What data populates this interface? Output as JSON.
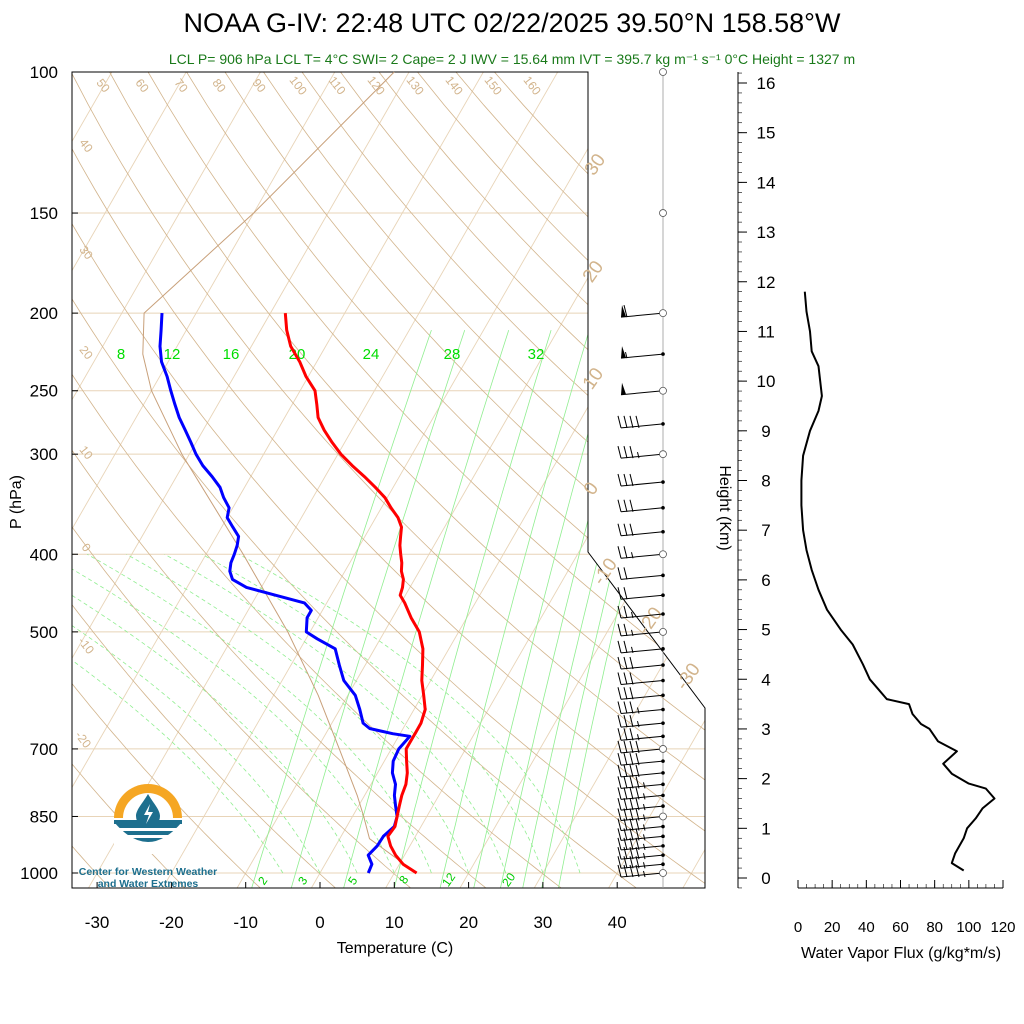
{
  "header": {
    "title": "NOAA G-IV: 22:48 UTC 02/22/2025  39.50°N 158.58°W",
    "subtitle": "LCL P= 906 hPa  LCL T= 4°C  SWI= 2  Cape= 2 J  IWV = 15.64 mm  IVT = 395.7 kg m⁻¹ s⁻¹  0°C Height = 1327 m"
  },
  "logo": {
    "line1": "Center for Western Weather",
    "line2": "and Water Extremes",
    "icon": "water-drop-sun-icon"
  },
  "colors": {
    "dewpoint": "#0000ff",
    "temperature": "#ff0000",
    "dry_adiabat": "#d2b48c",
    "moist_adiabat": "#90ee90",
    "mixing_ratio": "#32cd32",
    "isobar": "#e8d4b8",
    "parcel": "#c8a07a",
    "subtitle": "#1a7a1a",
    "wind": "#000000",
    "flux": "#000000"
  },
  "chart_data": [
    {
      "type": "line",
      "name": "skew-t",
      "xlabel": "Temperature (C)",
      "ylabel": "P (hPa)",
      "xlim": [
        -35,
        50
      ],
      "ylim": [
        1000,
        100
      ],
      "y_scale": "log",
      "x_ticks": [
        "-30",
        "-20",
        "-10",
        "0",
        "10",
        "20",
        "30",
        "40"
      ],
      "y_ticks": [
        "100",
        "150",
        "200",
        "250",
        "300",
        "400",
        "500",
        "700",
        "850",
        "1000"
      ],
      "dry_adiabat_labels": [
        "50",
        "60",
        "70",
        "80",
        "90",
        "100",
        "110",
        "120",
        "130",
        "140",
        "150",
        "160",
        "40",
        "30",
        "20",
        "10",
        "0",
        "-10",
        "-20"
      ],
      "isotherm_labels_right": [
        "30",
        "20",
        "10",
        "0",
        "-10",
        "-20",
        "-30"
      ],
      "mixing_ratio_labels_top": [
        "8",
        "12",
        "16",
        "20",
        "24",
        "28",
        "32"
      ],
      "mixing_ratio_labels_bottom": [
        "2",
        "3",
        "5",
        "8",
        "12",
        "20"
      ],
      "series": [
        {
          "key": "temperature",
          "points": [
            [
              1000,
              13
            ],
            [
              975,
              10.5
            ],
            [
              950,
              8.8
            ],
            [
              925,
              7.4
            ],
            [
              900,
              6.3
            ],
            [
              875,
              6.5
            ],
            [
              850,
              6
            ],
            [
              825,
              5.5
            ],
            [
              800,
              5
            ],
            [
              775,
              4.7
            ],
            [
              750,
              4
            ],
            [
              725,
              3
            ],
            [
              700,
              2
            ],
            [
              675,
              2
            ],
            [
              670,
              2
            ],
            [
              650,
              2
            ],
            [
              625,
              1.5
            ],
            [
              600,
              0.2
            ],
            [
              575,
              -1.2
            ],
            [
              550,
              -2.3
            ],
            [
              525,
              -3.5
            ],
            [
              500,
              -5.3
            ],
            [
              480,
              -7.5
            ],
            [
              460,
              -9.5
            ],
            [
              450,
              -10.7
            ],
            [
              440,
              -11
            ],
            [
              430,
              -11.5
            ],
            [
              420,
              -12.4
            ],
            [
              410,
              -13
            ],
            [
              400,
              -13.8
            ],
            [
              390,
              -14.6
            ],
            [
              380,
              -15.2
            ],
            [
              370,
              -15.8
            ],
            [
              360,
              -17
            ],
            [
              350,
              -18.7
            ],
            [
              340,
              -20.3
            ],
            [
              330,
              -22.4
            ],
            [
              320,
              -24.7
            ],
            [
              310,
              -27.2
            ],
            [
              300,
              -29.6
            ],
            [
              290,
              -31.7
            ],
            [
              280,
              -33.7
            ],
            [
              270,
              -35.5
            ],
            [
              260,
              -36.7
            ],
            [
              250,
              -38
            ],
            [
              240,
              -40.3
            ],
            [
              230,
              -42.3
            ],
            [
              220,
              -44.7
            ],
            [
              210,
              -46.5
            ],
            [
              200,
              -48
            ]
          ]
        },
        {
          "key": "dewpoint",
          "points": [
            [
              1000,
              6.5
            ],
            [
              975,
              6.3
            ],
            [
              950,
              5.1
            ],
            [
              925,
              5.6
            ],
            [
              900,
              5.7
            ],
            [
              875,
              6.4
            ],
            [
              850,
              6
            ],
            [
              825,
              5
            ],
            [
              800,
              4
            ],
            [
              775,
              3.3
            ],
            [
              750,
              2
            ],
            [
              725,
              1.2
            ],
            [
              700,
              1
            ],
            [
              675,
              1.5
            ],
            [
              670,
              -1
            ],
            [
              660,
              -4.5
            ],
            [
              650,
              -5.8
            ],
            [
              625,
              -7.3
            ],
            [
              600,
              -9
            ],
            [
              575,
              -11.7
            ],
            [
              550,
              -13.5
            ],
            [
              525,
              -15.3
            ],
            [
              510,
              -18.5
            ],
            [
              500,
              -20.5
            ],
            [
              490,
              -21
            ],
            [
              480,
              -21.5
            ],
            [
              470,
              -21.5
            ],
            [
              460,
              -23
            ],
            [
              450,
              -27.5
            ],
            [
              440,
              -32
            ],
            [
              430,
              -34.5
            ],
            [
              420,
              -35.5
            ],
            [
              410,
              -36
            ],
            [
              400,
              -36.2
            ],
            [
              390,
              -36.5
            ],
            [
              380,
              -37
            ],
            [
              370,
              -38.5
            ],
            [
              360,
              -40
            ],
            [
              350,
              -40.5
            ],
            [
              340,
              -42
            ],
            [
              330,
              -43.3
            ],
            [
              320,
              -45.2
            ],
            [
              310,
              -47.3
            ],
            [
              300,
              -49.1
            ],
            [
              290,
              -50.7
            ],
            [
              280,
              -52.4
            ],
            [
              270,
              -54.2
            ],
            [
              260,
              -55.8
            ],
            [
              250,
              -57.4
            ],
            [
              240,
              -59
            ],
            [
              230,
              -60.9
            ],
            [
              220,
              -62.3
            ],
            [
              210,
              -63.4
            ],
            [
              200,
              -64.6
            ]
          ]
        },
        {
          "key": "parcel",
          "points": [
            [
              1000,
              13
            ],
            [
              906,
              4
            ],
            [
              850,
              1.5
            ],
            [
              800,
              -1
            ],
            [
              700,
              -7
            ],
            [
              600,
              -14
            ],
            [
              500,
              -23
            ],
            [
              400,
              -35
            ],
            [
              300,
              -51
            ],
            [
              250,
              -60
            ],
            [
              225,
              -64
            ],
            [
              200,
              -67
            ],
            [
              150,
              -60
            ],
            [
              100,
              -52
            ]
          ]
        }
      ],
      "wind_barbs": {
        "pressures": [
          1000,
          975,
          950,
          925,
          900,
          875,
          850,
          825,
          800,
          775,
          750,
          725,
          700,
          675,
          650,
          625,
          600,
          575,
          550,
          525,
          500,
          475,
          450,
          425,
          400,
          375,
          350,
          325,
          300,
          275,
          250,
          225,
          200
        ],
        "speeds_kt": [
          45,
          45,
          45,
          45,
          45,
          45,
          45,
          45,
          45,
          45,
          40,
          40,
          40,
          35,
          35,
          35,
          30,
          30,
          30,
          25,
          25,
          25,
          20,
          20,
          25,
          30,
          30,
          30,
          35,
          40,
          50,
          55,
          60
        ],
        "direction": "west"
      }
    },
    {
      "type": "line",
      "name": "water-vapor-flux",
      "xlabel": "Water Vapor Flux (g/kg*m/s)",
      "ylabel": "Height (Km)",
      "xlim": [
        0,
        120
      ],
      "ylim": [
        -0.3,
        16.4
      ],
      "x_ticks": [
        "0",
        "20",
        "40",
        "60",
        "80",
        "100",
        "120"
      ],
      "y_ticks": [
        "0",
        "1",
        "2",
        "3",
        "4",
        "5",
        "6",
        "7",
        "8",
        "9",
        "10",
        "11",
        "12",
        "13",
        "14",
        "15",
        "16"
      ],
      "points": [
        [
          97,
          0.15
        ],
        [
          90,
          0.3
        ],
        [
          92,
          0.5
        ],
        [
          97,
          0.8
        ],
        [
          99,
          1.0
        ],
        [
          104,
          1.2
        ],
        [
          108,
          1.4
        ],
        [
          115,
          1.6
        ],
        [
          110,
          1.8
        ],
        [
          100,
          1.9
        ],
        [
          90,
          2.1
        ],
        [
          85,
          2.3
        ],
        [
          93,
          2.55
        ],
        [
          82,
          2.75
        ],
        [
          77,
          3.0
        ],
        [
          72,
          3.1
        ],
        [
          67,
          3.3
        ],
        [
          65,
          3.5
        ],
        [
          52,
          3.6
        ],
        [
          47,
          3.8
        ],
        [
          42,
          4.0
        ],
        [
          38,
          4.3
        ],
        [
          32,
          4.7
        ],
        [
          25,
          5.0
        ],
        [
          17,
          5.4
        ],
        [
          12,
          5.8
        ],
        [
          8,
          6.2
        ],
        [
          5,
          6.6
        ],
        [
          3,
          7.0
        ],
        [
          2,
          7.5
        ],
        [
          2,
          8.0
        ],
        [
          3,
          8.5
        ],
        [
          7,
          9.0
        ],
        [
          12,
          9.4
        ],
        [
          14,
          9.7
        ],
        [
          13,
          10.0
        ],
        [
          12,
          10.3
        ],
        [
          8,
          10.6
        ],
        [
          7,
          11.0
        ],
        [
          5,
          11.4
        ],
        [
          4,
          11.8
        ]
      ]
    }
  ]
}
